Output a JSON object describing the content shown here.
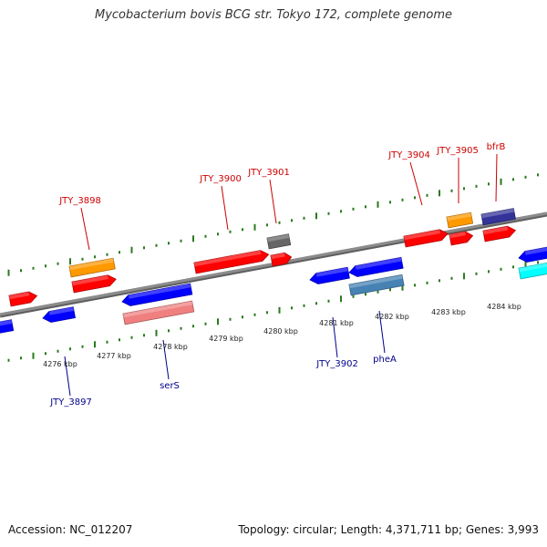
{
  "title": "Mycobacterium bovis BCG str. Tokyo 172, complete genome",
  "footer": {
    "accession": "Accession: NC_012207",
    "summary": "Topology: circular; Length: 4,371,711 bp; Genes: 3,993"
  },
  "colors": {
    "backbone": "#8c8c8c",
    "tick_forward": "#2a7a1e",
    "tick_reverse": "#2a7a1e",
    "label_forward": "#cc0000",
    "label_reverse": "#00008b"
  },
  "scale": {
    "ticks": [
      {
        "label": "4276 kbp"
      },
      {
        "label": "4277 kbp"
      },
      {
        "label": "4278 kbp"
      },
      {
        "label": "4279 kbp"
      },
      {
        "label": "4280 kbp"
      },
      {
        "label": "4281 kbp"
      },
      {
        "label": "4282 kbp"
      },
      {
        "label": "4283 kbp"
      },
      {
        "label": "4284 kbp"
      }
    ]
  },
  "features": [
    {
      "name": "JTY_3898",
      "label": "JTY_3898",
      "strand": "forward",
      "color": "#ff0000"
    },
    {
      "name": "JTY_3900",
      "label": "JTY_3900",
      "strand": "forward",
      "color": "#ff0000"
    },
    {
      "name": "JTY_3901",
      "label": "JTY_3901",
      "strand": "forward",
      "color": "#ff0000"
    },
    {
      "name": "JTY_3904",
      "label": "JTY_3904",
      "strand": "forward",
      "color": "#ff0000"
    },
    {
      "name": "JTY_3905",
      "label": "JTY_3905",
      "strand": "forward",
      "color": "#ff0000"
    },
    {
      "name": "bfrB",
      "label": "bfrB",
      "strand": "forward",
      "color": "#ff0000"
    },
    {
      "name": "JTY_3897",
      "label": "JTY_3897",
      "strand": "reverse",
      "color": "#0000ff"
    },
    {
      "name": "serS",
      "label": "serS",
      "strand": "reverse",
      "color": "#0000ff"
    },
    {
      "name": "JTY_3902",
      "label": "JTY_3902",
      "strand": "reverse",
      "color": "#0000ff"
    },
    {
      "name": "pheA",
      "label": "pheA",
      "strand": "reverse",
      "color": "#0000ff"
    },
    {
      "name": "orange-feature-forward-1",
      "label": "",
      "strand": "forward",
      "color": "#ff9900"
    },
    {
      "name": "orange-feature-forward-2",
      "label": "",
      "strand": "forward",
      "color": "#ff9900"
    },
    {
      "name": "gray-feature-forward",
      "label": "",
      "strand": "forward",
      "color": "#666666"
    },
    {
      "name": "navy-feature-forward",
      "label": "",
      "strand": "forward",
      "color": "#333399"
    },
    {
      "name": "pink-feature-reverse",
      "label": "",
      "strand": "reverse",
      "color": "#f08080"
    },
    {
      "name": "steelblue-feature-reverse",
      "label": "",
      "strand": "reverse",
      "color": "#4682b4"
    },
    {
      "name": "cyan-feature-reverse",
      "label": "",
      "strand": "reverse",
      "color": "#00ffff"
    }
  ]
}
